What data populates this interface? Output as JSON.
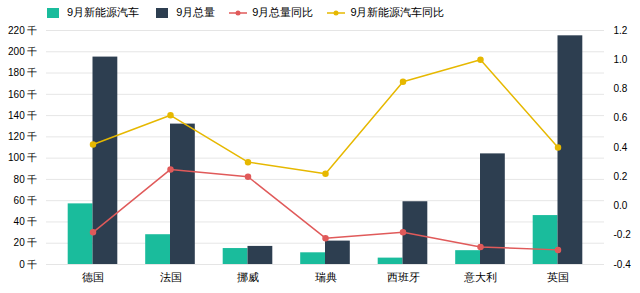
{
  "chart_data": {
    "type": "bar",
    "categories": [
      "德国",
      "法国",
      "挪威",
      "瑞典",
      "西班牙",
      "意大利",
      "英国"
    ],
    "series": [
      {
        "name": "9月新能源汽车",
        "type": "bar",
        "color": "#1abc9c",
        "values": [
          57,
          28,
          15,
          11,
          6,
          13,
          46
        ]
      },
      {
        "name": "9月总量",
        "type": "bar",
        "color": "#2d3e50",
        "values": [
          195,
          132,
          17,
          22,
          59,
          104,
          215
        ]
      },
      {
        "name": "9月总量同比",
        "type": "line",
        "axis": "y2",
        "color": "#e05a5a",
        "marker": "circle",
        "line_style": "solid",
        "values": [
          -0.18,
          0.25,
          0.2,
          -0.22,
          -0.18,
          -0.28,
          -0.3
        ]
      },
      {
        "name": "9月新能源汽车同比",
        "type": "line",
        "axis": "y2",
        "color": "#e6b800",
        "marker": "circle",
        "line_style": "solid",
        "values": [
          0.42,
          0.62,
          0.3,
          0.22,
          0.85,
          1.0,
          0.4
        ]
      }
    ],
    "ylim": [
      0,
      220
    ],
    "yticks": [
      {
        "value": 0,
        "label": "0 千"
      },
      {
        "value": 20,
        "label": "20 千"
      },
      {
        "value": 40,
        "label": "40 千"
      },
      {
        "value": 60,
        "label": "60 千"
      },
      {
        "value": 80,
        "label": "80 千"
      },
      {
        "value": 100,
        "label": "100 千"
      },
      {
        "value": 120,
        "label": "120 千"
      },
      {
        "value": 140,
        "label": "140 千"
      },
      {
        "value": 160,
        "label": "160 千"
      },
      {
        "value": 180,
        "label": "180 千"
      },
      {
        "value": 200,
        "label": "200 千"
      },
      {
        "value": 220,
        "label": "220 千"
      }
    ],
    "y2lim": [
      -0.4,
      1.2
    ],
    "y2ticks": [
      -0.4,
      -0.2,
      {
        "value": 0,
        "label": "0.0"
      },
      0.2,
      0.4,
      0.6,
      0.8,
      {
        "value": 1,
        "label": "1.0"
      },
      1.2
    ],
    "grid": true,
    "legend": "upper left"
  }
}
